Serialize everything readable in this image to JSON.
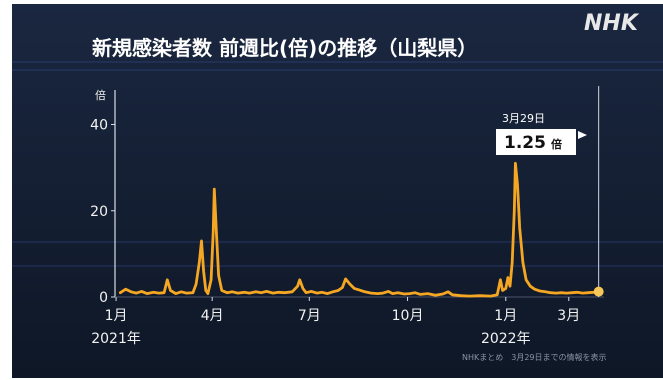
{
  "header": {
    "title": "新規感染者数 前週比(倍)の推移（山梨県）",
    "logo": "NHK"
  },
  "colors": {
    "background": "#111c2e",
    "line": "#f5a623",
    "text": "#ffffff",
    "marker": "#f7c65a"
  },
  "chart_data": {
    "type": "line",
    "title": "新規感染者数 前週比(倍)の推移（山梨県）",
    "ylabel": "倍",
    "ylim": [
      0,
      48
    ],
    "yticks": [
      0,
      20,
      40
    ],
    "xlim": [
      "2020-12-31",
      "2022-04-03"
    ],
    "xticks": [
      {
        "date": "2021-01-01",
        "label": "1月",
        "year": "2021年"
      },
      {
        "date": "2021-04-01",
        "label": "4月",
        "year": ""
      },
      {
        "date": "2021-07-01",
        "label": "7月",
        "year": ""
      },
      {
        "date": "2021-10-01",
        "label": "10月",
        "year": ""
      },
      {
        "date": "2022-01-01",
        "label": "1月",
        "year": "2022年"
      },
      {
        "date": "2022-03-01",
        "label": "3月",
        "year": ""
      }
    ],
    "grid": false,
    "series": [
      {
        "values": [
          [
            "2021-01-05",
            1.0
          ],
          [
            "2021-01-10",
            1.8
          ],
          [
            "2021-01-15",
            1.2
          ],
          [
            "2021-01-20",
            0.9
          ],
          [
            "2021-01-25",
            1.3
          ],
          [
            "2021-01-30",
            0.8
          ],
          [
            "2021-02-05",
            1.1
          ],
          [
            "2021-02-10",
            0.9
          ],
          [
            "2021-02-15",
            1.0
          ],
          [
            "2021-02-18",
            4.0
          ],
          [
            "2021-02-21",
            1.5
          ],
          [
            "2021-02-26",
            0.8
          ],
          [
            "2021-03-03",
            1.2
          ],
          [
            "2021-03-08",
            0.9
          ],
          [
            "2021-03-14",
            1.0
          ],
          [
            "2021-03-17",
            3.0
          ],
          [
            "2021-03-20",
            8.0
          ],
          [
            "2021-03-22",
            13.0
          ],
          [
            "2021-03-24",
            6.0
          ],
          [
            "2021-03-26",
            1.5
          ],
          [
            "2021-03-28",
            0.8
          ],
          [
            "2021-03-31",
            4.0
          ],
          [
            "2021-04-02",
            15.0
          ],
          [
            "2021-04-03",
            25.0
          ],
          [
            "2021-04-05",
            15.0
          ],
          [
            "2021-04-07",
            5.0
          ],
          [
            "2021-04-10",
            1.5
          ],
          [
            "2021-04-15",
            1.0
          ],
          [
            "2021-04-20",
            1.2
          ],
          [
            "2021-04-25",
            0.9
          ],
          [
            "2021-05-01",
            1.1
          ],
          [
            "2021-05-06",
            0.9
          ],
          [
            "2021-05-12",
            1.2
          ],
          [
            "2021-05-17",
            1.0
          ],
          [
            "2021-05-22",
            1.3
          ],
          [
            "2021-05-28",
            0.9
          ],
          [
            "2021-06-02",
            1.1
          ],
          [
            "2021-06-08",
            1.0
          ],
          [
            "2021-06-15",
            1.2
          ],
          [
            "2021-06-20",
            2.5
          ],
          [
            "2021-06-22",
            4.0
          ],
          [
            "2021-06-25",
            2.0
          ],
          [
            "2021-06-28",
            1.0
          ],
          [
            "2021-07-03",
            1.3
          ],
          [
            "2021-07-08",
            0.9
          ],
          [
            "2021-07-13",
            1.1
          ],
          [
            "2021-07-18",
            0.8
          ],
          [
            "2021-07-23",
            1.2
          ],
          [
            "2021-07-28",
            1.5
          ],
          [
            "2021-08-01",
            2.2
          ],
          [
            "2021-08-04",
            4.2
          ],
          [
            "2021-08-08",
            3.0
          ],
          [
            "2021-08-12",
            2.0
          ],
          [
            "2021-08-17",
            1.6
          ],
          [
            "2021-08-22",
            1.2
          ],
          [
            "2021-08-28",
            0.9
          ],
          [
            "2021-09-03",
            0.8
          ],
          [
            "2021-09-08",
            0.9
          ],
          [
            "2021-09-13",
            1.3
          ],
          [
            "2021-09-17",
            0.8
          ],
          [
            "2021-09-22",
            1.0
          ],
          [
            "2021-09-28",
            0.7
          ],
          [
            "2021-10-03",
            0.8
          ],
          [
            "2021-10-08",
            1.0
          ],
          [
            "2021-10-13",
            0.6
          ],
          [
            "2021-10-20",
            0.8
          ],
          [
            "2021-10-27",
            0.4
          ],
          [
            "2021-11-03",
            0.7
          ],
          [
            "2021-11-08",
            1.2
          ],
          [
            "2021-11-12",
            0.5
          ],
          [
            "2021-11-20",
            0.3
          ],
          [
            "2021-11-28",
            0.2
          ],
          [
            "2021-12-08",
            0.3
          ],
          [
            "2021-12-18",
            0.2
          ],
          [
            "2021-12-24",
            0.5
          ],
          [
            "2021-12-27",
            4.0
          ],
          [
            "2021-12-29",
            1.5
          ],
          [
            "2022-01-01",
            2.0
          ],
          [
            "2022-01-03",
            4.5
          ],
          [
            "2022-01-05",
            2.5
          ],
          [
            "2022-01-07",
            8.0
          ],
          [
            "2022-01-09",
            20.0
          ],
          [
            "2022-01-10",
            31.0
          ],
          [
            "2022-01-12",
            26.0
          ],
          [
            "2022-01-14",
            16.0
          ],
          [
            "2022-01-17",
            8.0
          ],
          [
            "2022-01-20",
            4.0
          ],
          [
            "2022-01-24",
            2.5
          ],
          [
            "2022-01-28",
            1.8
          ],
          [
            "2022-02-02",
            1.4
          ],
          [
            "2022-02-07",
            1.2
          ],
          [
            "2022-02-12",
            1.0
          ],
          [
            "2022-02-17",
            0.9
          ],
          [
            "2022-02-22",
            1.0
          ],
          [
            "2022-02-27",
            0.9
          ],
          [
            "2022-03-04",
            1.0
          ],
          [
            "2022-03-09",
            1.1
          ],
          [
            "2022-03-14",
            0.9
          ],
          [
            "2022-03-19",
            1.0
          ],
          [
            "2022-03-24",
            1.1
          ],
          [
            "2022-03-29",
            1.25
          ]
        ]
      }
    ],
    "annotation": {
      "date": "2022-03-29",
      "date_label": "3月29日",
      "value": 1.25,
      "value_label": "1.25",
      "unit": "倍"
    },
    "source": "NHKまとめ　3月29日までの情報を表示"
  }
}
